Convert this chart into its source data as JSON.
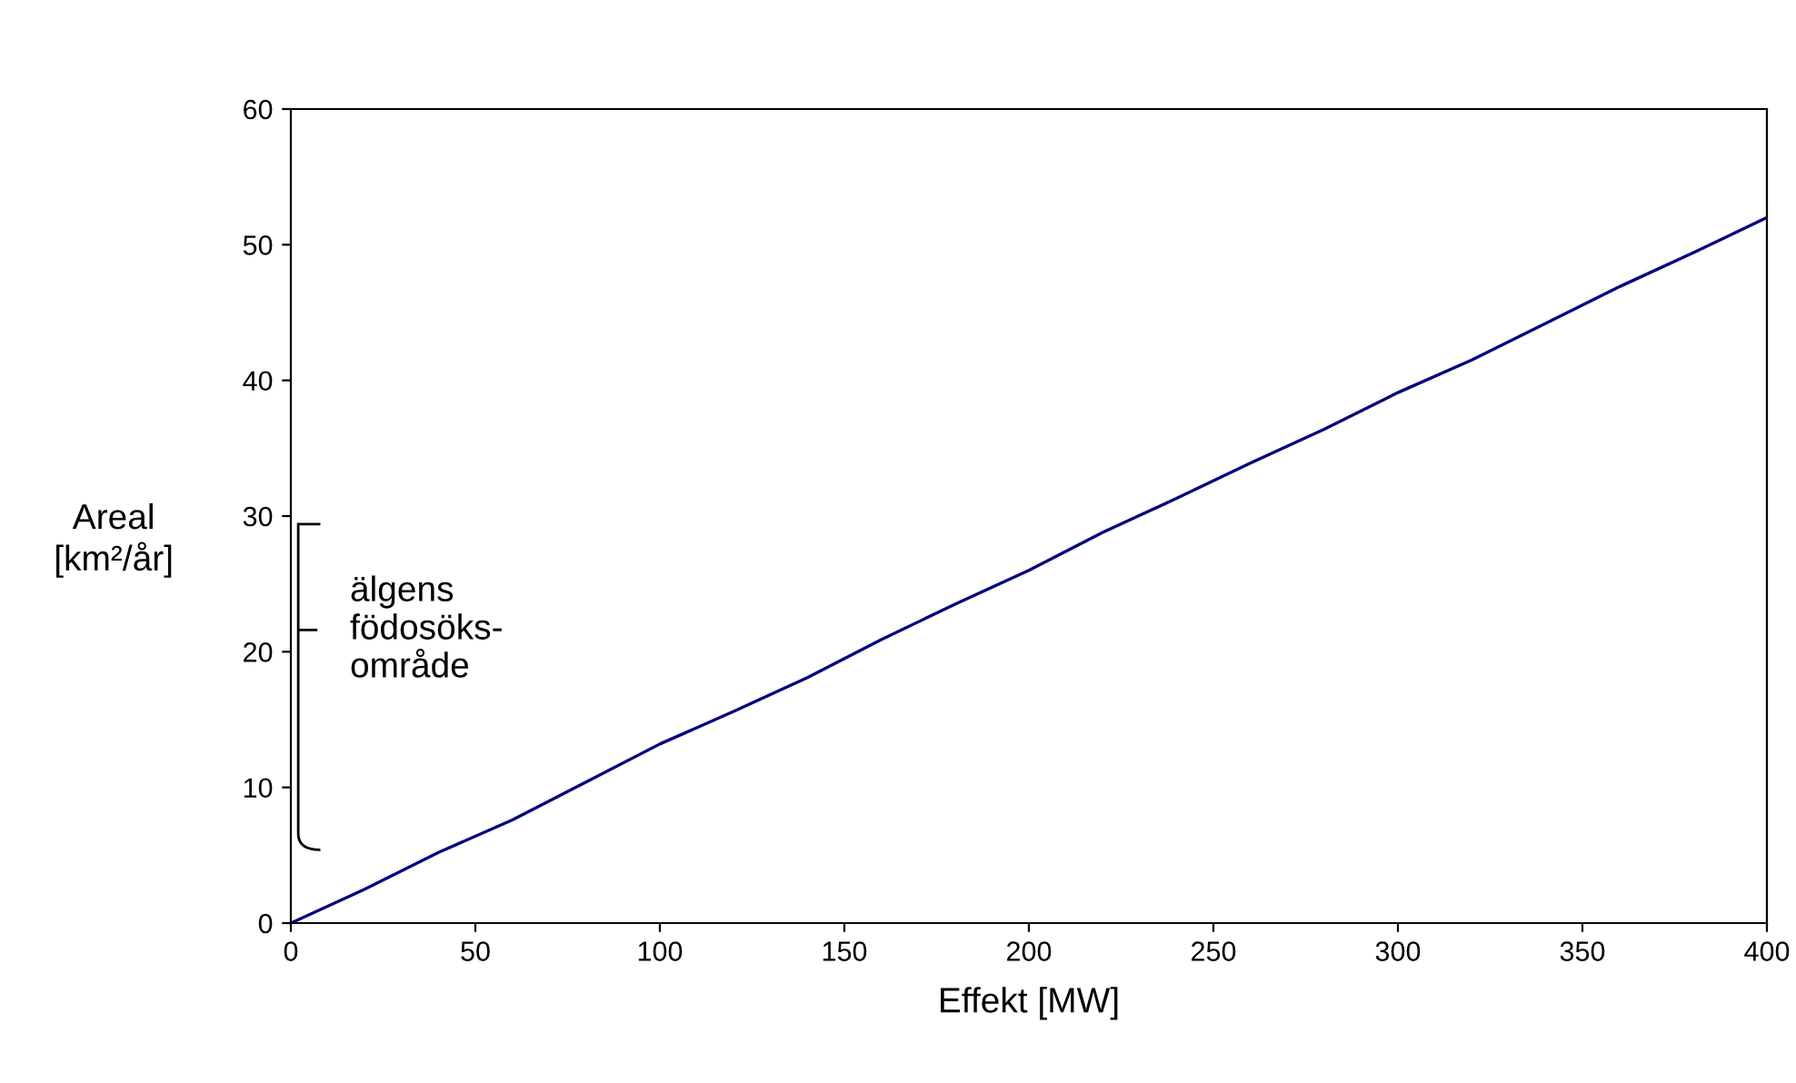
{
  "chart_data": {
    "type": "line",
    "x": [
      0,
      20,
      40,
      60,
      80,
      100,
      120,
      140,
      160,
      180,
      200,
      220,
      240,
      260,
      280,
      300,
      320,
      340,
      360,
      380,
      400
    ],
    "series": [
      {
        "color": "#000080",
        "values": [
          0,
          2.5,
          5.2,
          7.6,
          10.4,
          13.2,
          15.6,
          18.1,
          20.9,
          23.5,
          26,
          28.8,
          31.3,
          33.9,
          36.4,
          39.1,
          41.5,
          44.2,
          46.9,
          49.4,
          52
        ]
      }
    ],
    "xlabel": "Effekt [MW]",
    "ylabel": "Areal\n[km²/år]",
    "annotations": [
      "älgens\nfödosöks-\nområde"
    ],
    "xlim": [
      0,
      400
    ],
    "ylim": [
      0,
      60
    ],
    "xticks": [
      0,
      50,
      100,
      150,
      200,
      250,
      300,
      350,
      400
    ],
    "yticks": [
      0,
      10,
      20,
      30,
      40,
      50,
      60
    ],
    "grid": false,
    "legend": false,
    "marker": "none",
    "line_style": "solid"
  }
}
